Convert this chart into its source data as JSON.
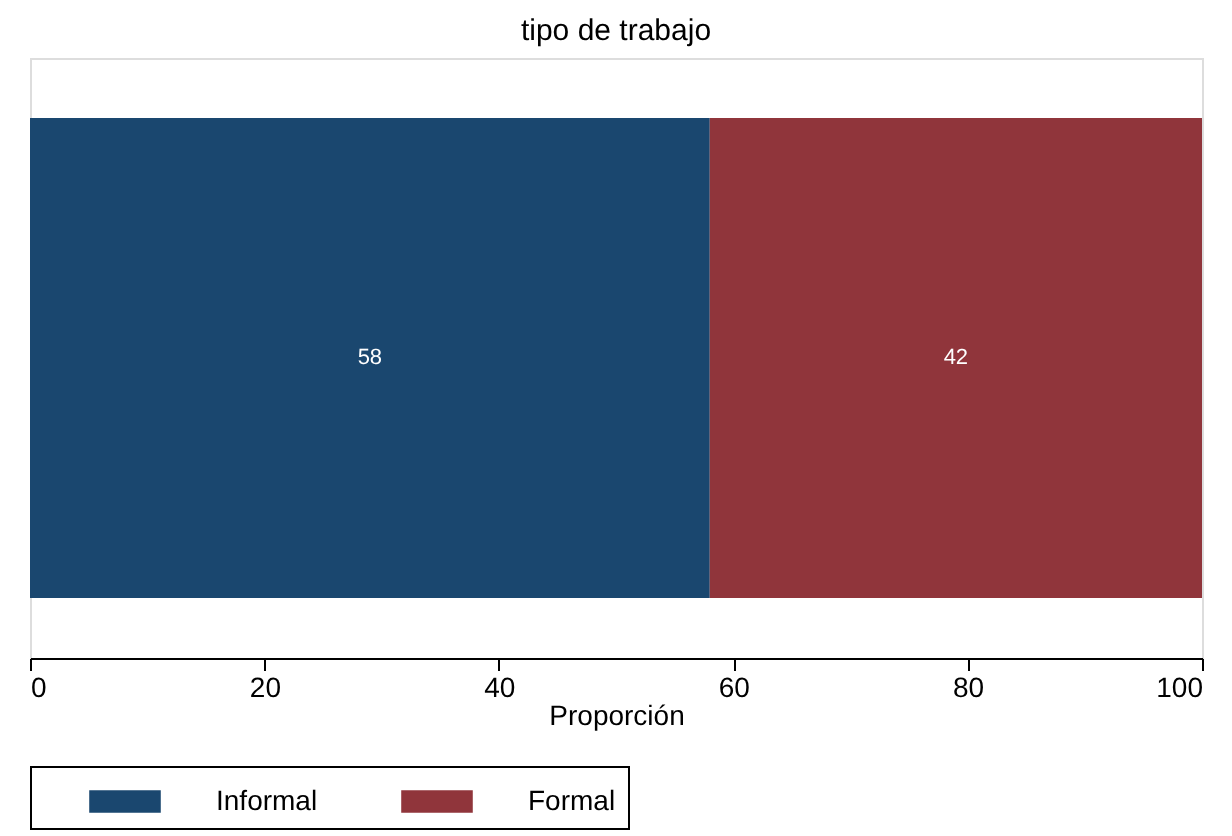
{
  "chart_data": {
    "type": "bar",
    "orientation": "horizontal",
    "stacked": true,
    "title": "tipo de trabajo",
    "xlabel": "Proporción",
    "categories": [
      null
    ],
    "series": [
      {
        "name": "Informal",
        "color": "#1a476f",
        "values": [
          58
        ]
      },
      {
        "name": "Formal",
        "color": "#90353b",
        "values": [
          42
        ]
      }
    ],
    "xlim": [
      0,
      100
    ],
    "xticks": [
      0,
      20,
      40,
      60,
      80,
      100
    ],
    "data_labels": true,
    "legend": "bottom",
    "grid": false
  }
}
